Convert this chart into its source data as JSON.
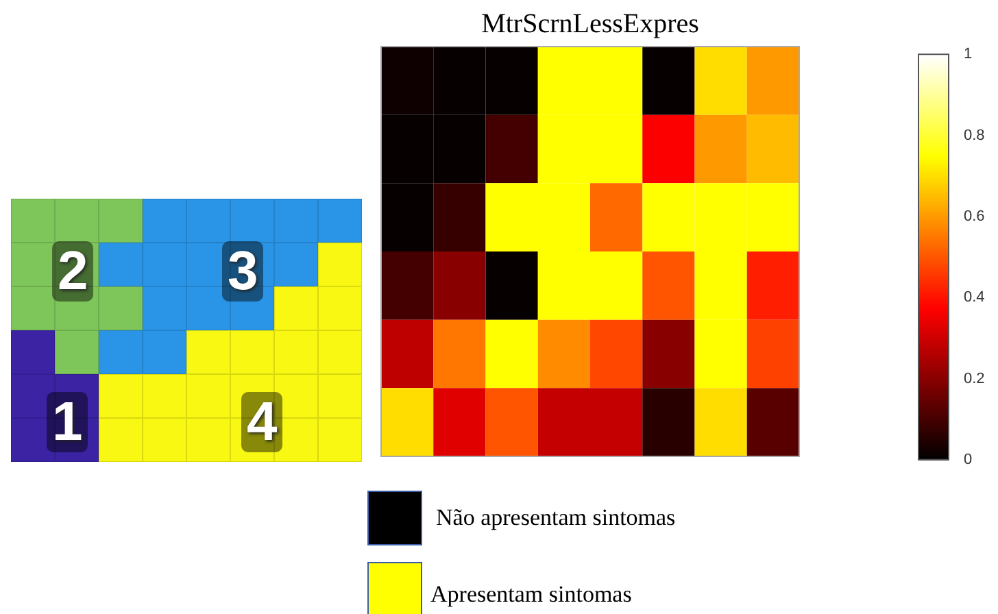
{
  "chart_data": [
    {
      "type": "other",
      "annotations": [
        "2",
        "3",
        "1",
        "4"
      ]
    },
    {
      "type": "heatmap",
      "title": "MtrScrnLessExpres",
      "tick_labels": false,
      "categories": [
        null,
        null,
        null,
        null,
        null,
        null,
        null,
        null
      ],
      "y_categories": [
        null,
        null,
        null,
        null,
        null,
        null
      ],
      "cells": [
        [
          0.02,
          0.01,
          0.01,
          0.75,
          0.75,
          0.01,
          0.7,
          0.6
        ],
        [
          0.01,
          0.01,
          0.1,
          0.75,
          0.75,
          0.37,
          0.6,
          0.65
        ],
        [
          0.01,
          0.08,
          0.75,
          0.75,
          0.53,
          0.75,
          0.75,
          0.75
        ],
        [
          0.1,
          0.2,
          0.01,
          0.75,
          0.75,
          0.5,
          0.75,
          0.42
        ],
        [
          0.28,
          0.55,
          0.75,
          0.58,
          0.48,
          0.2,
          0.75,
          0.47
        ],
        [
          0.7,
          0.33,
          0.5,
          0.29,
          0.29,
          0.06,
          0.7,
          0.13
        ]
      ],
      "clim": [
        0,
        1
      ],
      "cticks": [
        0,
        0.2,
        0.4,
        0.6,
        0.8,
        1
      ],
      "annotations": [
        "Não apresentam sintomas",
        "Apresentam sintomas"
      ]
    }
  ]
}
